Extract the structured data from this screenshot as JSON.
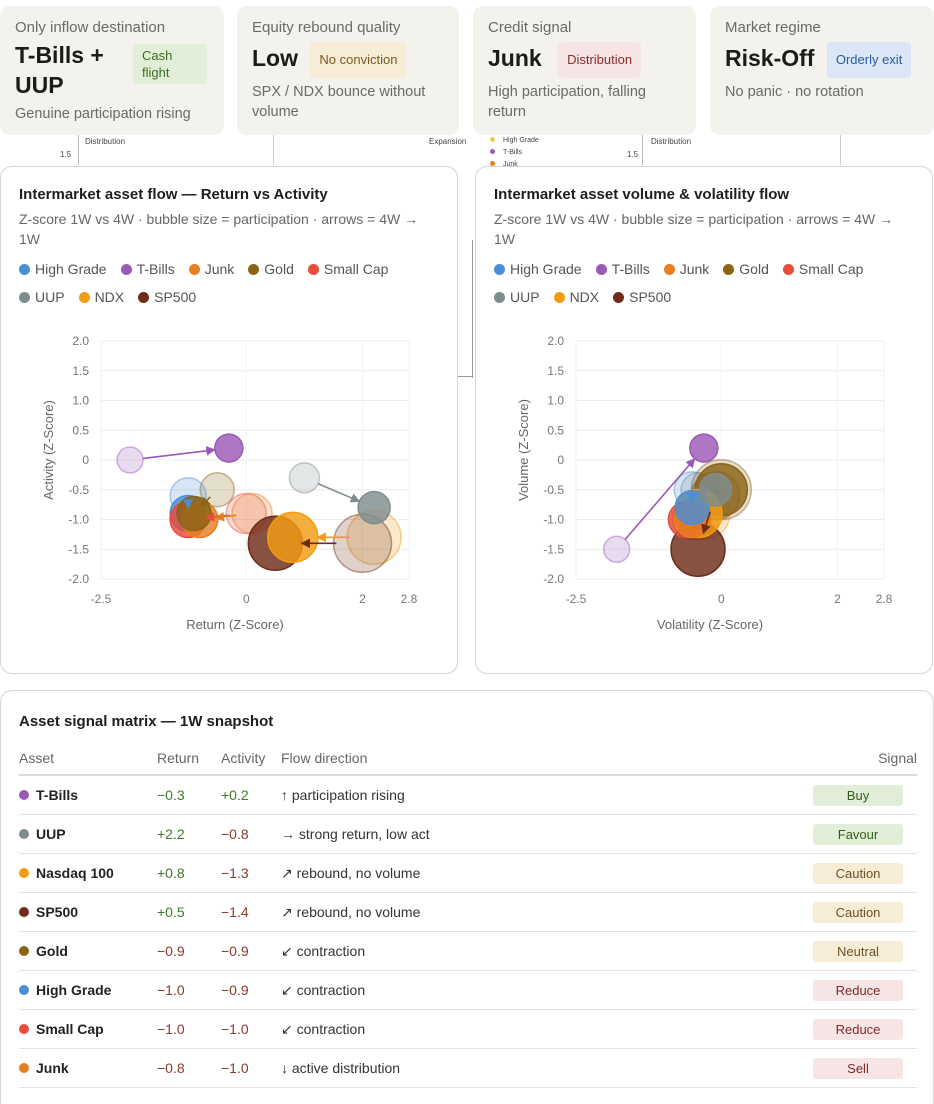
{
  "cards": [
    {
      "label": "Only inflow destination",
      "value": "T-Bills + UUP",
      "badge": "Cash flight",
      "badge_color": "green",
      "sub": "Genuine participation rising"
    },
    {
      "label": "Equity rebound quality",
      "value": "Low",
      "badge": "No conviction",
      "badge_color": "amber",
      "sub": "SPX / NDX bounce without volume"
    },
    {
      "label": "Credit signal",
      "value": "Junk",
      "badge": "Distribution",
      "badge_color": "red",
      "sub": "High participation, falling return"
    },
    {
      "label": "Market regime",
      "value": "Risk-Off",
      "badge": "Orderly exit",
      "badge_color": "blue",
      "sub": "No panic · no rotation"
    }
  ],
  "ghost": {
    "tick": "1.5",
    "distribution": "Distribution",
    "expansion": "Expansion",
    "legend": [
      "High Grade",
      "T-Bills",
      "Junk"
    ]
  },
  "legend": [
    {
      "name": "High Grade",
      "color": "#4a8fd6"
    },
    {
      "name": "T-Bills",
      "color": "#9b59b6"
    },
    {
      "name": "Junk",
      "color": "#e67e22"
    },
    {
      "name": "Gold",
      "color": "#8a6417"
    },
    {
      "name": "Small Cap",
      "color": "#e74c3c"
    },
    {
      "name": "UUP",
      "color": "#7f8c8d"
    },
    {
      "name": "NDX",
      "color": "#f39c12"
    },
    {
      "name": "SP500",
      "color": "#6e2c18"
    }
  ],
  "chart_data": [
    {
      "type": "scatter",
      "title": "Intermarket asset flow — Return vs Activity",
      "subtitle": "Z-score 1W vs 4W · bubble size = participation · arrows = 4W → 1W",
      "xlabel": "Return (Z-Score)",
      "ylabel": "Activity (Z-Score)",
      "xlim": [
        -2.5,
        2.8
      ],
      "ylim": [
        -2.0,
        2.0
      ],
      "xticks": [
        "-2.5",
        "0",
        "2",
        "2.8"
      ],
      "yticks": [
        "2.0",
        "1.5",
        "1.0",
        "0.5",
        "0",
        "-0.5",
        "-1.0",
        "-1.5",
        "-2.0"
      ],
      "points": [
        {
          "name": "T-Bills",
          "color": "#9b59b6",
          "x4w": -2.0,
          "y4w": 0.0,
          "x1w": -0.3,
          "y1w": 0.2,
          "r4w": 13,
          "r1w": 14
        },
        {
          "name": "UUP",
          "color": "#7f8c8d",
          "x4w": 1.0,
          "y4w": -0.3,
          "x1w": 2.2,
          "y1w": -0.8,
          "r4w": 15,
          "r1w": 16
        },
        {
          "name": "NDX",
          "color": "#f39c12",
          "x4w": 2.2,
          "y4w": -1.3,
          "x1w": 0.8,
          "y1w": -1.3,
          "r4w": 27,
          "r1w": 25
        },
        {
          "name": "SP500",
          "color": "#6e2c18",
          "x4w": 2.0,
          "y4w": -1.4,
          "x1w": 0.5,
          "y1w": -1.4,
          "r4w": 29,
          "r1w": 27
        },
        {
          "name": "Gold",
          "color": "#8a6417",
          "x4w": -0.5,
          "y4w": -0.5,
          "x1w": -0.9,
          "y1w": -0.9,
          "r4w": 17,
          "r1w": 17
        },
        {
          "name": "High Grade",
          "color": "#4a8fd6",
          "x4w": -1.0,
          "y4w": -0.6,
          "x1w": -1.0,
          "y1w": -0.9,
          "r4w": 18,
          "r1w": 18
        },
        {
          "name": "Small Cap",
          "color": "#e74c3c",
          "x4w": 0.0,
          "y4w": -0.9,
          "x1w": -1.0,
          "y1w": -1.0,
          "r4w": 20,
          "r1w": 18
        },
        {
          "name": "Junk",
          "color": "#e67e22",
          "x4w": 0.1,
          "y4w": -0.9,
          "x1w": -0.8,
          "y1w": -1.0,
          "r4w": 20,
          "r1w": 18
        }
      ]
    },
    {
      "type": "scatter",
      "title": "Intermarket asset volume & volatility flow",
      "subtitle": "Z-score 1W vs 4W · bubble size = participation · arrows = 4W → 1W",
      "xlabel": "Volatility (Z-Score)",
      "ylabel": "Volume (Z-Score)",
      "xlim": [
        -2.5,
        2.8
      ],
      "ylim": [
        -2.0,
        2.0
      ],
      "xticks": [
        "-2.5",
        "0",
        "2",
        "2.8"
      ],
      "yticks": [
        "2.0",
        "1.5",
        "1.0",
        "0.5",
        "0",
        "-0.5",
        "-1.0",
        "-1.5",
        "-2.0"
      ],
      "points": [
        {
          "name": "T-Bills",
          "color": "#9b59b6",
          "x4w": -1.8,
          "y4w": -1.5,
          "x1w": -0.3,
          "y1w": 0.2,
          "r4w": 13,
          "r1w": 14
        },
        {
          "name": "UUP",
          "color": "#7f8c8d",
          "x4w": -0.4,
          "y4w": -0.5,
          "x1w": -0.1,
          "y1w": -0.5,
          "r4w": 17,
          "r1w": 16
        },
        {
          "name": "Gold",
          "color": "#8a6417",
          "x4w": 0.0,
          "y4w": -0.5,
          "x1w": 0.0,
          "y1w": -0.5,
          "r4w": 30,
          "r1w": 26
        },
        {
          "name": "NDX",
          "color": "#f39c12",
          "x4w": -0.3,
          "y4w": -0.9,
          "x1w": -0.4,
          "y1w": -0.9,
          "r4w": 26,
          "r1w": 24
        },
        {
          "name": "High Grade",
          "color": "#4a8fd6",
          "x4w": -0.5,
          "y4w": -0.5,
          "x1w": -0.5,
          "y1w": -0.8,
          "r4w": 18,
          "r1w": 17
        },
        {
          "name": "Small Cap",
          "color": "#e74c3c",
          "x4w": -0.5,
          "y4w": -1.0,
          "x1w": -0.6,
          "y1w": -1.0,
          "r4w": 20,
          "r1w": 18
        },
        {
          "name": "Junk",
          "color": "#e67e22",
          "x4w": -0.4,
          "y4w": -1.0,
          "x1w": -0.5,
          "y1w": -1.0,
          "r4w": 20,
          "r1w": 18
        },
        {
          "name": "SP500",
          "color": "#6e2c18",
          "x4w": -0.1,
          "y4w": -0.6,
          "x1w": -0.4,
          "y1w": -1.5,
          "r4w": 24,
          "r1w": 27
        }
      ]
    }
  ],
  "table": {
    "title": "Asset signal matrix — 1W snapshot",
    "headers": [
      "Asset",
      "Return",
      "Activity",
      "Flow direction",
      "Signal"
    ],
    "rows": [
      {
        "asset": "T-Bills",
        "color": "#9b59b6",
        "ret": "−0.3",
        "ret_sign": "pos",
        "act": "+0.2",
        "act_sign": "pos",
        "flow": "↑ participation rising",
        "signal": "Buy",
        "signal_color": "green"
      },
      {
        "asset": "UUP",
        "color": "#7f8c8d",
        "ret": "+2.2",
        "ret_sign": "pos",
        "act": "−0.8",
        "act_sign": "neg",
        "flow": "→ strong return, low act",
        "signal": "Favour",
        "signal_color": "green"
      },
      {
        "asset": "Nasdaq 100",
        "color": "#f39c12",
        "ret": "+0.8",
        "ret_sign": "pos",
        "act": "−1.3",
        "act_sign": "neg",
        "flow": "↗ rebound, no volume",
        "signal": "Caution",
        "signal_color": "amber"
      },
      {
        "asset": "SP500",
        "color": "#6e2c18",
        "ret": "+0.5",
        "ret_sign": "pos",
        "act": "−1.4",
        "act_sign": "neg",
        "flow": "↗ rebound, no volume",
        "signal": "Caution",
        "signal_color": "amber"
      },
      {
        "asset": "Gold",
        "color": "#8a6417",
        "ret": "−0.9",
        "ret_sign": "neg",
        "act": "−0.9",
        "act_sign": "neg",
        "flow": "↙ contraction",
        "signal": "Neutral",
        "signal_color": "amber"
      },
      {
        "asset": "High Grade",
        "color": "#4a8fd6",
        "ret": "−1.0",
        "ret_sign": "neg",
        "act": "−0.9",
        "act_sign": "neg",
        "flow": "↙ contraction",
        "signal": "Reduce",
        "signal_color": "red"
      },
      {
        "asset": "Small Cap",
        "color": "#e74c3c",
        "ret": "−1.0",
        "ret_sign": "neg",
        "act": "−1.0",
        "act_sign": "neg",
        "flow": "↙ contraction",
        "signal": "Reduce",
        "signal_color": "red"
      },
      {
        "asset": "Junk",
        "color": "#e67e22",
        "ret": "−0.8",
        "ret_sign": "neg",
        "act": "−1.0",
        "act_sign": "neg",
        "flow": "↓ active distribution",
        "signal": "Sell",
        "signal_color": "red"
      }
    ]
  }
}
